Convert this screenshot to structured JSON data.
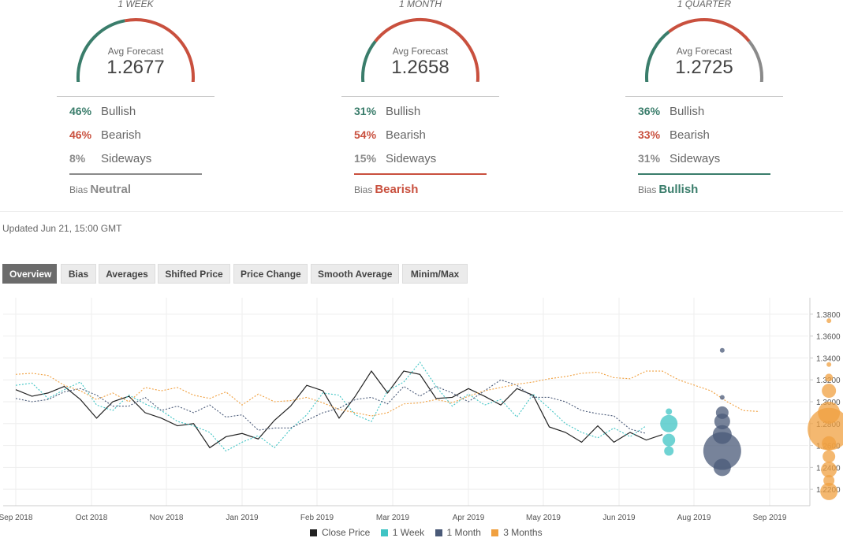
{
  "colors": {
    "bullish": "#3a7d6b",
    "bearish": "#c9503e",
    "sideways": "#8a8a8a",
    "teal": "#3fc4c4",
    "navy": "#4a5a78",
    "orange": "#f0a040",
    "black": "#222222"
  },
  "forecasts": [
    {
      "period": "1 WEEK",
      "avg_label": "Avg Forecast",
      "avg_value": "1.2677",
      "bullish_pct": "46%",
      "bullish_label": "Bullish",
      "bearish_pct": "46%",
      "bearish_label": "Bearish",
      "sideways_pct": "8%",
      "sideways_label": "Sideways",
      "bias_label": "Bias",
      "bias_value": "Neutral",
      "bias_key": "neutral",
      "bullish": 46,
      "bearish": 46,
      "sideways": 8
    },
    {
      "period": "1 MONTH",
      "avg_label": "Avg Forecast",
      "avg_value": "1.2658",
      "bullish_pct": "31%",
      "bullish_label": "Bullish",
      "bearish_pct": "54%",
      "bearish_label": "Bearish",
      "sideways_pct": "15%",
      "sideways_label": "Sideways",
      "bias_label": "Bias",
      "bias_value": "Bearish",
      "bias_key": "bearish",
      "bullish": 31,
      "bearish": 54,
      "sideways": 15
    },
    {
      "period": "1 QUARTER",
      "avg_label": "Avg Forecast",
      "avg_value": "1.2725",
      "bullish_pct": "36%",
      "bullish_label": "Bullish",
      "bearish_pct": "33%",
      "bearish_label": "Bearish",
      "sideways_pct": "31%",
      "sideways_label": "Sideways",
      "bias_label": "Bias",
      "bias_value": "Bullish",
      "bias_key": "bullish",
      "bullish": 36,
      "bearish": 33,
      "sideways": 31
    }
  ],
  "updated": "Updated Jun 21, 15:00 GMT",
  "tabs": [
    {
      "label": "Overview",
      "active": true
    },
    {
      "label": "Bias",
      "active": false
    },
    {
      "label": "Averages",
      "active": false
    },
    {
      "label": "Shifted Price",
      "active": false
    },
    {
      "label": "Price Change",
      "active": false
    },
    {
      "label": "Smooth Average",
      "active": false
    },
    {
      "label": "Minim/Max",
      "active": false
    }
  ],
  "chart_data": {
    "type": "line",
    "x_ticks": [
      "Sep 2018",
      "Oct 2018",
      "Nov 2018",
      "Jan 2019",
      "Feb 2019",
      "Mar 2019",
      "Apr 2019",
      "May 2019",
      "Jun 2019",
      "Aug 2019",
      "Sep 2019"
    ],
    "y_ticks": [
      "1.3800",
      "1.3600",
      "1.3400",
      "1.3200",
      "1.3000",
      "1.2800",
      "1.2600",
      "1.2400",
      "1.2200"
    ],
    "ylim": [
      1.205,
      1.395
    ],
    "grid": true,
    "legend_position": "bottom",
    "series": [
      {
        "name": "Close Price",
        "style": "solid",
        "color": "#222222",
        "points": [
          [
            0,
            1.311
          ],
          [
            1,
            1.305
          ],
          [
            2,
            1.308
          ],
          [
            3,
            1.314
          ],
          [
            4,
            1.302
          ],
          [
            5,
            1.285
          ],
          [
            6,
            1.3
          ],
          [
            7,
            1.305
          ],
          [
            8,
            1.29
          ],
          [
            9,
            1.285
          ],
          [
            10,
            1.278
          ],
          [
            11,
            1.28
          ],
          [
            12,
            1.258
          ],
          [
            13,
            1.268
          ],
          [
            14,
            1.271
          ],
          [
            15,
            1.266
          ],
          [
            16,
            1.283
          ],
          [
            17,
            1.296
          ],
          [
            18,
            1.315
          ],
          [
            19,
            1.31
          ],
          [
            20,
            1.285
          ],
          [
            21,
            1.305
          ],
          [
            22,
            1.328
          ],
          [
            23,
            1.308
          ],
          [
            24,
            1.328
          ],
          [
            25,
            1.325
          ],
          [
            26,
            1.303
          ],
          [
            27,
            1.304
          ],
          [
            28,
            1.312
          ],
          [
            29,
            1.305
          ],
          [
            30,
            1.297
          ],
          [
            31,
            1.312
          ],
          [
            32,
            1.306
          ],
          [
            33,
            1.277
          ],
          [
            34,
            1.272
          ],
          [
            35,
            1.263
          ],
          [
            36,
            1.278
          ],
          [
            37,
            1.263
          ],
          [
            38,
            1.272
          ],
          [
            39,
            1.265
          ],
          [
            40,
            1.27
          ]
        ]
      },
      {
        "name": "1 Week",
        "style": "dotted",
        "color": "#3fc4c4",
        "points": [
          [
            0,
            1.315
          ],
          [
            1,
            1.317
          ],
          [
            2,
            1.303
          ],
          [
            3,
            1.311
          ],
          [
            4,
            1.318
          ],
          [
            5,
            1.297
          ],
          [
            6,
            1.292
          ],
          [
            7,
            1.306
          ],
          [
            8,
            1.298
          ],
          [
            9,
            1.292
          ],
          [
            10,
            1.282
          ],
          [
            11,
            1.278
          ],
          [
            12,
            1.272
          ],
          [
            13,
            1.255
          ],
          [
            14,
            1.263
          ],
          [
            15,
            1.269
          ],
          [
            16,
            1.258
          ],
          [
            17,
            1.275
          ],
          [
            18,
            1.288
          ],
          [
            19,
            1.308
          ],
          [
            20,
            1.306
          ],
          [
            21,
            1.288
          ],
          [
            22,
            1.282
          ],
          [
            23,
            1.31
          ],
          [
            24,
            1.318
          ],
          [
            25,
            1.336
          ],
          [
            26,
            1.314
          ],
          [
            27,
            1.296
          ],
          [
            28,
            1.307
          ],
          [
            29,
            1.297
          ],
          [
            30,
            1.302
          ],
          [
            31,
            1.286
          ],
          [
            32,
            1.307
          ],
          [
            33,
            1.294
          ],
          [
            34,
            1.28
          ],
          [
            35,
            1.272
          ],
          [
            36,
            1.267
          ],
          [
            37,
            1.276
          ],
          [
            38,
            1.268
          ],
          [
            39,
            1.278
          ]
        ]
      },
      {
        "name": "1 Month",
        "style": "dotted",
        "color": "#4a5a78",
        "points": [
          [
            0,
            1.303
          ],
          [
            1,
            1.3
          ],
          [
            2,
            1.302
          ],
          [
            3,
            1.309
          ],
          [
            4,
            1.312
          ],
          [
            5,
            1.306
          ],
          [
            6,
            1.296
          ],
          [
            7,
            1.296
          ],
          [
            8,
            1.304
          ],
          [
            9,
            1.292
          ],
          [
            10,
            1.296
          ],
          [
            11,
            1.29
          ],
          [
            12,
            1.297
          ],
          [
            13,
            1.286
          ],
          [
            14,
            1.288
          ],
          [
            15,
            1.274
          ],
          [
            16,
            1.276
          ],
          [
            17,
            1.276
          ],
          [
            18,
            1.283
          ],
          [
            19,
            1.29
          ],
          [
            20,
            1.294
          ],
          [
            21,
            1.302
          ],
          [
            22,
            1.304
          ],
          [
            23,
            1.298
          ],
          [
            24,
            1.314
          ],
          [
            25,
            1.305
          ],
          [
            26,
            1.314
          ],
          [
            27,
            1.308
          ],
          [
            28,
            1.3
          ],
          [
            29,
            1.31
          ],
          [
            30,
            1.32
          ],
          [
            31,
            1.315
          ],
          [
            32,
            1.304
          ],
          [
            33,
            1.304
          ],
          [
            34,
            1.3
          ],
          [
            35,
            1.292
          ],
          [
            36,
            1.289
          ],
          [
            37,
            1.287
          ],
          [
            38,
            1.275
          ],
          [
            39,
            1.271
          ]
        ]
      },
      {
        "name": "3 Months",
        "style": "dotted",
        "color": "#f0a040",
        "points": [
          [
            0,
            1.325
          ],
          [
            1,
            1.326
          ],
          [
            2,
            1.324
          ],
          [
            3,
            1.315
          ],
          [
            4,
            1.31
          ],
          [
            5,
            1.302
          ],
          [
            6,
            1.308
          ],
          [
            7,
            1.3
          ],
          [
            8,
            1.313
          ],
          [
            9,
            1.31
          ],
          [
            10,
            1.313
          ],
          [
            11,
            1.306
          ],
          [
            12,
            1.303
          ],
          [
            13,
            1.309
          ],
          [
            14,
            1.297
          ],
          [
            15,
            1.307
          ],
          [
            16,
            1.3
          ],
          [
            17,
            1.301
          ],
          [
            18,
            1.304
          ],
          [
            19,
            1.299
          ],
          [
            20,
            1.293
          ],
          [
            21,
            1.29
          ],
          [
            22,
            1.287
          ],
          [
            23,
            1.29
          ],
          [
            24,
            1.298
          ],
          [
            25,
            1.299
          ],
          [
            26,
            1.302
          ],
          [
            27,
            1.299
          ],
          [
            28,
            1.305
          ],
          [
            29,
            1.31
          ],
          [
            30,
            1.313
          ],
          [
            31,
            1.316
          ],
          [
            32,
            1.318
          ],
          [
            33,
            1.321
          ],
          [
            34,
            1.323
          ],
          [
            35,
            1.326
          ],
          [
            36,
            1.327
          ],
          [
            37,
            1.322
          ],
          [
            38,
            1.321
          ],
          [
            39,
            1.328
          ],
          [
            40,
            1.328
          ],
          [
            41,
            1.32
          ],
          [
            42,
            1.315
          ],
          [
            43,
            1.31
          ],
          [
            44,
            1.3
          ],
          [
            45,
            1.292
          ],
          [
            46,
            1.291
          ]
        ]
      }
    ],
    "forecast_bubbles": [
      {
        "series": "1 Week",
        "x": 40.4,
        "values": [
          1.291,
          1.28,
          1.265,
          1.255
        ]
      },
      {
        "series": "1 Month",
        "x": 43.7,
        "values": [
          1.347,
          1.304,
          1.29,
          1.282,
          1.27,
          1.255,
          1.24
        ]
      },
      {
        "series": "3 Months",
        "x": 50.3,
        "values": [
          1.374,
          1.334,
          1.322,
          1.31,
          1.29,
          1.275,
          1.262,
          1.25,
          1.238,
          1.228,
          1.218
        ]
      }
    ]
  },
  "legend": [
    "Close Price",
    "1 Week",
    "1 Month",
    "3 Months"
  ]
}
